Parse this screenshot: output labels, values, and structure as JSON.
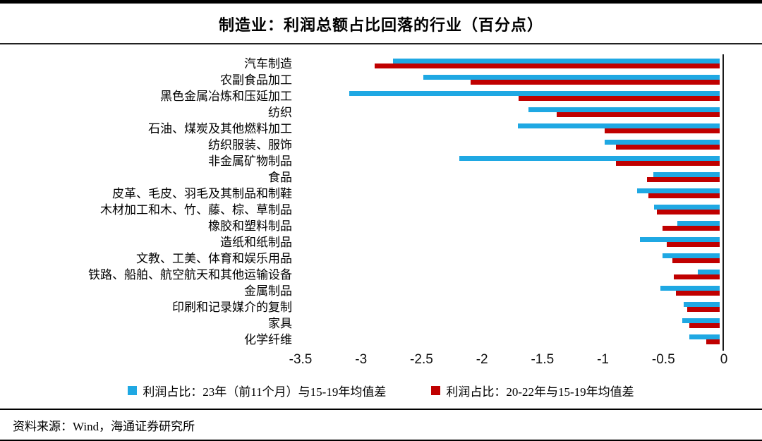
{
  "header": {
    "title": "制造业：利润总额占比回落的行业（百分点）"
  },
  "footer": {
    "source": "资料来源：Wind，海通证券研究所"
  },
  "colors": {
    "blue_series": "#1FA8E3",
    "red_series": "#C00000",
    "axis": "#1a1a1a"
  },
  "chart_data": {
    "type": "bar",
    "orientation": "horizontal",
    "title": "制造业：利润总额占比回落的行业（百分点）",
    "xlabel": "",
    "ylabel": "",
    "xlim": [
      -3.5,
      0
    ],
    "x_ticks": [
      "-3.5",
      "-3",
      "-2.5",
      "-2",
      "-1.5",
      "-1",
      "-0.5",
      "0"
    ],
    "x_tick_values": [
      -3.5,
      -3,
      -2.5,
      -2,
      -1.5,
      -1,
      -0.5,
      0
    ],
    "grid": false,
    "legend_position": "bottom",
    "categories": [
      "汽车制造",
      "农副食品加工",
      "黑色金属冶炼和压延加工",
      "纺织",
      "石油、煤炭及其他燃料加工",
      "纺织服装、服饰",
      "非金属矿物制品",
      "食品",
      "皮革、毛皮、羽毛及其制品和制鞋",
      "木材加工和木、竹、藤、棕、草制品",
      "橡胶和塑料制品",
      "造纸和纸制品",
      "文教、工美、体育和娱乐用品",
      "铁路、船舶、航空航天和其他运输设备",
      "金属制品",
      "印刷和记录媒介的复制",
      "家具",
      "化学纤维"
    ],
    "series": [
      {
        "name": "利润占比：23年（前11个月）与15-19年均值差",
        "color": "#1FA8E3",
        "values": [
          -2.7,
          -2.45,
          -3.06,
          -1.58,
          -1.67,
          -0.95,
          -2.15,
          -0.55,
          -0.68,
          -0.54,
          -0.35,
          -0.66,
          -0.47,
          -0.18,
          -0.49,
          -0.3,
          -0.31,
          -0.25
        ]
      },
      {
        "name": "利润占比：20-22年与15-19年均值差",
        "color": "#C00000",
        "values": [
          -2.85,
          -2.06,
          -1.66,
          -1.35,
          -0.95,
          -0.86,
          -0.86,
          -0.6,
          -0.59,
          -0.52,
          -0.47,
          -0.44,
          -0.39,
          -0.38,
          -0.36,
          -0.27,
          -0.25,
          -0.11
        ]
      }
    ]
  }
}
